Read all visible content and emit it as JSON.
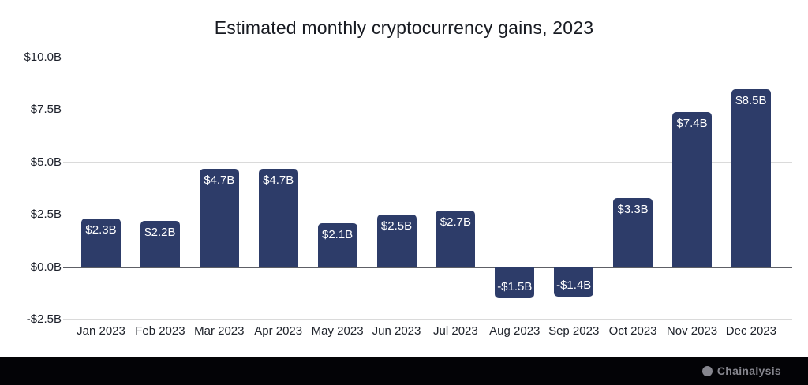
{
  "footer": {
    "brand": "Chainalysis"
  },
  "colors": {
    "bar": "#2d3c69",
    "bar_label_text": "#ffffff",
    "gridline": "#dadada",
    "zero_line": "#5e6066",
    "axis_text": "#1d212b",
    "title_text": "#181b22",
    "footer_background": "#030306",
    "logo_gray": "#86868e"
  },
  "chart_data": {
    "type": "bar",
    "title": "Estimated monthly cryptocurrency gains, 2023",
    "categories": [
      "Jan 2023",
      "Feb 2023",
      "Mar 2023",
      "Apr 2023",
      "May 2023",
      "Jun 2023",
      "Jul 2023",
      "Aug 2023",
      "Sep 2023",
      "Oct 2023",
      "Nov 2023",
      "Dec 2023"
    ],
    "values": [
      2.3,
      2.2,
      4.7,
      4.7,
      2.1,
      2.5,
      2.7,
      -1.5,
      -1.4,
      3.3,
      7.4,
      8.5
    ],
    "bar_labels": [
      "$2.3B",
      "$2.2B",
      "$4.7B",
      "$4.7B",
      "$2.1B",
      "$2.5B",
      "$2.7B",
      "-$1.5B",
      "-$1.4B",
      "$3.3B",
      "$7.4B",
      "$8.5B"
    ],
    "y_ticks": [
      {
        "value": 10.0,
        "label": "$10.0B"
      },
      {
        "value": 7.5,
        "label": "$7.5B"
      },
      {
        "value": 5.0,
        "label": "$5.0B"
      },
      {
        "value": 2.5,
        "label": "$2.5B"
      },
      {
        "value": 0.0,
        "label": "$0.0B"
      },
      {
        "value": -2.5,
        "label": "-$2.5B"
      }
    ],
    "ylim": [
      -2.5,
      10.0
    ],
    "xlabel": "",
    "ylabel": "",
    "grid": true,
    "legend": false,
    "bar_value_labels_inside": true
  }
}
